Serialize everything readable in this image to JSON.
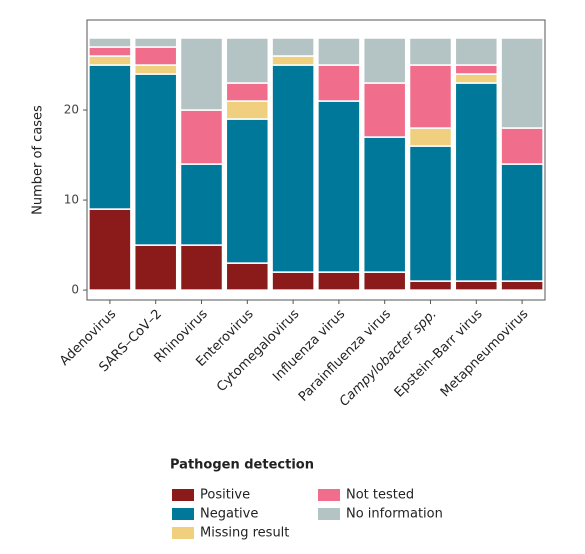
{
  "chart_data": {
    "type": "stacked_bar",
    "y_label": "Number of cases",
    "legend_title": "Pathogen detection",
    "categories": [
      "Adenovirus",
      "SARS–CoV–2",
      "Rhinovirus",
      "Enterovirus",
      "Cytomegalovirus",
      "Influenza virus",
      "Parainfluenza virus",
      "Campylobacter spp.",
      "Epstein–Barr virus",
      "Metapneumovirus"
    ],
    "series": [
      {
        "name": "Positive",
        "color": "#8b1a1a",
        "values": [
          9,
          5,
          5,
          3,
          2,
          2,
          2,
          1,
          1,
          1
        ]
      },
      {
        "name": "Negative",
        "color": "#00789a",
        "values": [
          16,
          19,
          9,
          16,
          23,
          19,
          15,
          15,
          22,
          13
        ]
      },
      {
        "name": "Missing result",
        "color": "#f0d07e",
        "values": [
          1,
          1,
          0,
          2,
          1,
          0,
          0,
          2,
          1,
          0
        ]
      },
      {
        "name": "Not tested",
        "color": "#f06e8c",
        "values": [
          1,
          2,
          6,
          2,
          0,
          4,
          6,
          7,
          1,
          4
        ]
      },
      {
        "name": "No information",
        "color": "#b4c4c4",
        "values": [
          1,
          1,
          8,
          5,
          2,
          3,
          5,
          3,
          3,
          10
        ]
      }
    ],
    "ylim": [
      -1.1,
      30
    ],
    "yticks": [
      0,
      10,
      20
    ]
  }
}
